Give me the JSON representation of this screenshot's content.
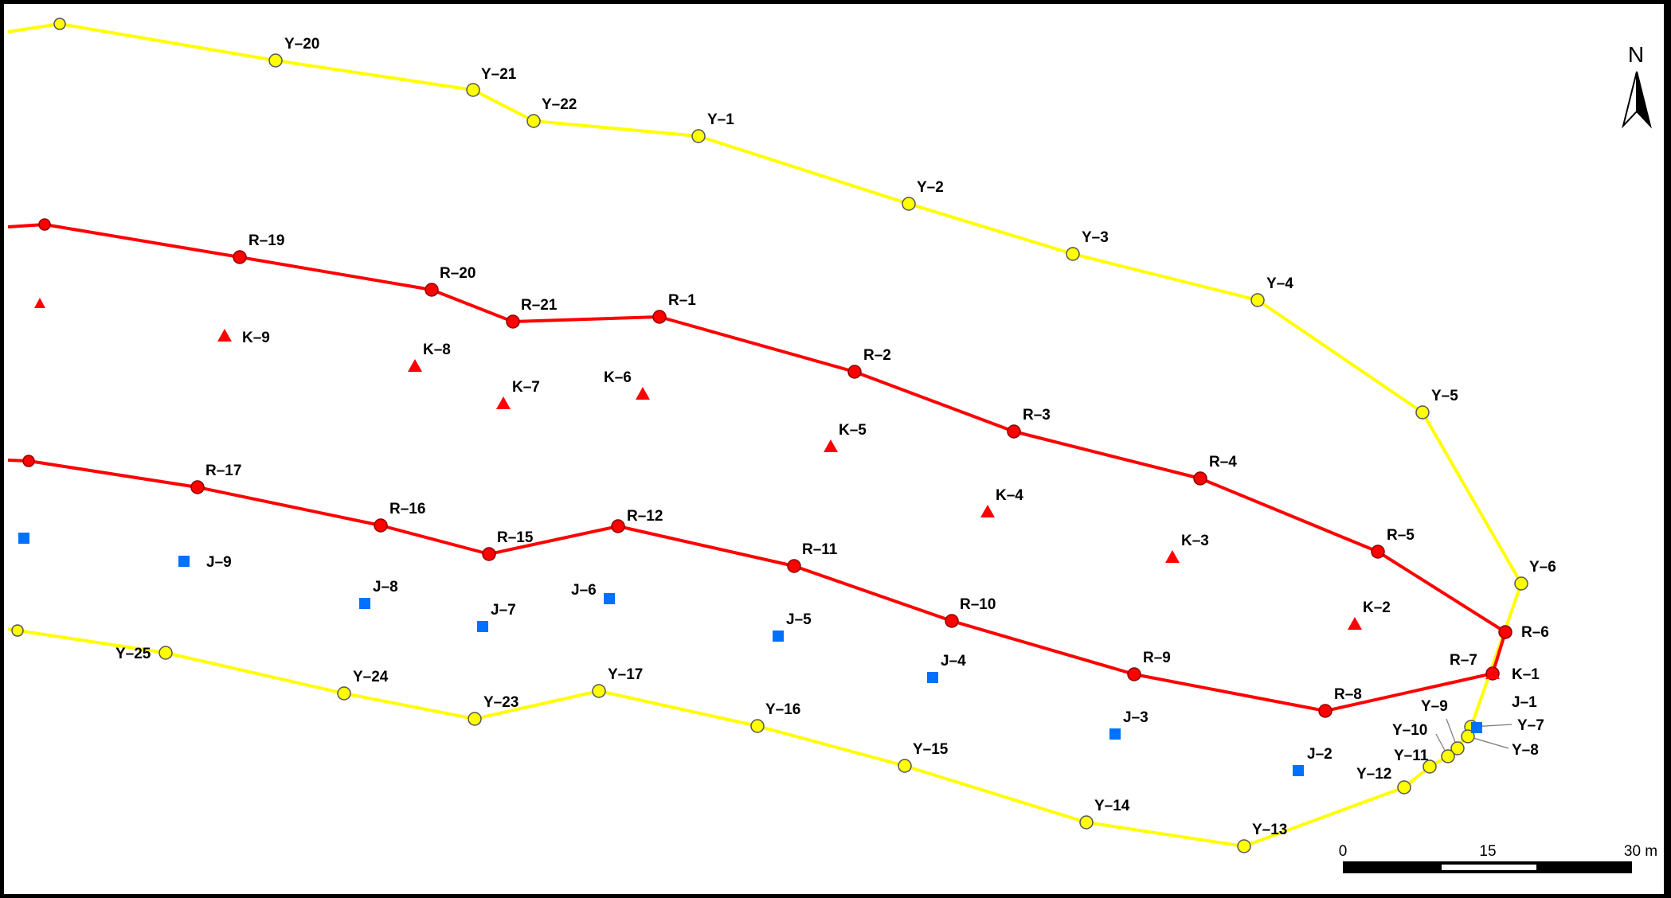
{
  "map": {
    "north_label": "N",
    "scale": {
      "labels": [
        "0",
        "15",
        "30 m"
      ]
    },
    "colors": {
      "yellow": "#FFFF00",
      "red": "#FF0000",
      "blue": "#0070FF"
    },
    "yellow_points": [
      {
        "id": "Y-20",
        "label": "Y–20"
      },
      {
        "id": "Y-21",
        "label": "Y–21"
      },
      {
        "id": "Y-22",
        "label": "Y–22"
      },
      {
        "id": "Y-1",
        "label": "Y–1"
      },
      {
        "id": "Y-2",
        "label": "Y–2"
      },
      {
        "id": "Y-3",
        "label": "Y–3"
      },
      {
        "id": "Y-4",
        "label": "Y–4"
      },
      {
        "id": "Y-5",
        "label": "Y–5"
      },
      {
        "id": "Y-6",
        "label": "Y–6"
      },
      {
        "id": "Y-7",
        "label": "Y–7"
      },
      {
        "id": "Y-8",
        "label": "Y–8"
      },
      {
        "id": "Y-9",
        "label": "Y–9"
      },
      {
        "id": "Y-10",
        "label": "Y–10"
      },
      {
        "id": "Y-11",
        "label": "Y–11"
      },
      {
        "id": "Y-12",
        "label": "Y–12"
      },
      {
        "id": "Y-13",
        "label": "Y–13"
      },
      {
        "id": "Y-14",
        "label": "Y–14"
      },
      {
        "id": "Y-15",
        "label": "Y–15"
      },
      {
        "id": "Y-16",
        "label": "Y–16"
      },
      {
        "id": "Y-17",
        "label": "Y–17"
      },
      {
        "id": "Y-23",
        "label": "Y–23"
      },
      {
        "id": "Y-24",
        "label": "Y–24"
      },
      {
        "id": "Y-25",
        "label": "Y–25"
      }
    ],
    "red_points": [
      {
        "id": "R-19",
        "label": "R–19"
      },
      {
        "id": "R-20",
        "label": "R–20"
      },
      {
        "id": "R-21",
        "label": "R–21"
      },
      {
        "id": "R-1",
        "label": "R–1"
      },
      {
        "id": "R-2",
        "label": "R–2"
      },
      {
        "id": "R-3",
        "label": "R–3"
      },
      {
        "id": "R-4",
        "label": "R–4"
      },
      {
        "id": "R-5",
        "label": "R–5"
      },
      {
        "id": "R-6",
        "label": "R–6"
      },
      {
        "id": "R-7",
        "label": "R–7"
      },
      {
        "id": "R-8",
        "label": "R–8"
      },
      {
        "id": "R-9",
        "label": "R–9"
      },
      {
        "id": "R-10",
        "label": "R–10"
      },
      {
        "id": "R-11",
        "label": "R–11"
      },
      {
        "id": "R-12",
        "label": "R–12"
      },
      {
        "id": "R-15",
        "label": "R–15"
      },
      {
        "id": "R-16",
        "label": "R–16"
      },
      {
        "id": "R-17",
        "label": "R–17"
      }
    ],
    "k_points": [
      {
        "id": "K-1",
        "label": "K–1"
      },
      {
        "id": "K-2",
        "label": "K–2"
      },
      {
        "id": "K-3",
        "label": "K–3"
      },
      {
        "id": "K-4",
        "label": "K–4"
      },
      {
        "id": "K-5",
        "label": "K–5"
      },
      {
        "id": "K-6",
        "label": "K–6"
      },
      {
        "id": "K-7",
        "label": "K–7"
      },
      {
        "id": "K-8",
        "label": "K–8"
      },
      {
        "id": "K-9",
        "label": "K–9"
      }
    ],
    "j_points": [
      {
        "id": "J-1",
        "label": "J–1"
      },
      {
        "id": "J-2",
        "label": "J–2"
      },
      {
        "id": "J-3",
        "label": "J–3"
      },
      {
        "id": "J-4",
        "label": "J–4"
      },
      {
        "id": "J-5",
        "label": "J–5"
      },
      {
        "id": "J-6",
        "label": "J–6"
      },
      {
        "id": "J-7",
        "label": "J–7"
      },
      {
        "id": "J-8",
        "label": "J–8"
      },
      {
        "id": "J-9",
        "label": "J–9"
      }
    ]
  }
}
